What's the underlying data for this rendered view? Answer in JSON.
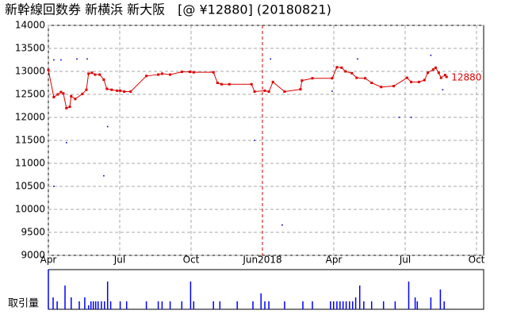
{
  "chart_data": {
    "type": "line",
    "title": "新幹線回数券 新横浜 新大阪　[@ ¥12880] (20180821)",
    "x": [
      0,
      0.23,
      0.4,
      0.53,
      0.63,
      0.76,
      0.9,
      0.96,
      1.13,
      1.43,
      1.6,
      1.69,
      1.83,
      1.96,
      2.16,
      2.33,
      2.46,
      2.66,
      2.89,
      3.02,
      3.19,
      3.46,
      4.12,
      4.62,
      4.78,
      5.12,
      5.61,
      5.95,
      6.11,
      6.94,
      7.11,
      7.28,
      7.61,
      8.54,
      8.67,
      9.1,
      9.27,
      9.44,
      9.93,
      10.6,
      10.66,
      11.1,
      11.93,
      12.13,
      12.33,
      12.49,
      12.76,
      12.96,
      13.32,
      13.59,
      13.99,
      14.52,
      15.08,
      15.25,
      15.58,
      15.81,
      15.95,
      16.18,
      16.28,
      16.41,
      16.51,
      16.68,
      16.74
    ],
    "series": [
      {
        "color": "#dd0000",
        "values": [
          13030,
          12440,
          12500,
          12550,
          12520,
          12200,
          12230,
          12460,
          12400,
          12510,
          12600,
          12950,
          12970,
          12930,
          12930,
          12820,
          12620,
          12600,
          12580,
          12580,
          12560,
          12560,
          12900,
          12930,
          12950,
          12930,
          12990,
          12990,
          12980,
          12980,
          12750,
          12720,
          12720,
          12720,
          12560,
          12580,
          12560,
          12770,
          12560,
          12610,
          12800,
          12850,
          12850,
          13090,
          13080,
          13000,
          12960,
          12860,
          12850,
          12750,
          12660,
          12680,
          12860,
          12770,
          12770,
          12810,
          12970,
          13040,
          13080,
          12970,
          12860,
          12920,
          12880
        ]
      }
    ],
    "scatter": {
      "color": "#0000cc",
      "x": [
        0.23,
        0.53,
        1.2,
        1.63,
        2.49,
        2.33,
        0.23,
        0.76,
        9.34,
        9.83,
        11.93,
        14.75,
        15.25,
        16.08,
        16.58,
        8.67,
        13.0
      ],
      "values": [
        13250,
        13250,
        13270,
        13270,
        11800,
        10730,
        10500,
        11450,
        13270,
        9660,
        12570,
        12000,
        12000,
        13350,
        12600,
        11500,
        13270
      ]
    },
    "volume": {
      "label": "取引量",
      "color": "#0000ff",
      "ylim": [
        0,
        10
      ],
      "x": [
        0,
        0.2,
        0.37,
        0.7,
        0.96,
        1.3,
        1.53,
        1.69,
        1.79,
        1.89,
        1.99,
        2.09,
        2.23,
        2.36,
        2.49,
        2.62,
        3.02,
        3.29,
        4.12,
        4.62,
        4.78,
        5.12,
        5.61,
        5.98,
        6.11,
        6.94,
        7.21,
        7.94,
        8.6,
        8.94,
        9.1,
        9.27,
        9.93,
        10.7,
        11.1,
        11.86,
        11.99,
        12.13,
        12.26,
        12.39,
        12.52,
        12.66,
        12.79,
        12.92,
        13.09,
        13.26,
        13.59,
        14.09,
        14.58,
        15.15,
        15.42,
        15.51,
        16.08,
        16.48,
        16.64
      ],
      "values": [
        10,
        3,
        2,
        6,
        3,
        2,
        3,
        1,
        2,
        2,
        2,
        2,
        2,
        2,
        7,
        2,
        2,
        2,
        2,
        2,
        2,
        2,
        2,
        7,
        2,
        2,
        2,
        2,
        2,
        4,
        2,
        2,
        2,
        2,
        2,
        2,
        2,
        2,
        2,
        2,
        2,
        2,
        2,
        3,
        6,
        2,
        2,
        2,
        2,
        7,
        3,
        2,
        3,
        5,
        2
      ]
    },
    "xlim": [
      0,
      18.3
    ],
    "xticks": [
      {
        "value": 0,
        "label": "Apr"
      },
      {
        "value": 3,
        "label": "Jul"
      },
      {
        "value": 6,
        "label": "Oct"
      },
      {
        "value": 9,
        "label": "Jun2018"
      },
      {
        "value": 12,
        "label": "Apr"
      },
      {
        "value": 15,
        "label": "Jul"
      },
      {
        "value": 18,
        "label": "Oct"
      }
    ],
    "ylim": [
      9000,
      14000
    ],
    "yticks": [
      9000,
      9500,
      10000,
      10500,
      11000,
      11500,
      12000,
      12500,
      13000,
      13500,
      14000
    ],
    "grid": true,
    "divider_color": "#cc0000"
  }
}
